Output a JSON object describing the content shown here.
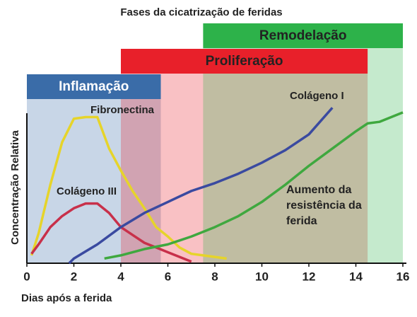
{
  "chart_data": {
    "type": "line",
    "title": "Fases da cicatrização de feridas",
    "xlabel": "Dias após a ferida",
    "ylabel": "Concentração Relativa",
    "xlim": [
      0,
      16
    ],
    "xticks": [
      0,
      2,
      4,
      6,
      8,
      10,
      12,
      14,
      16
    ],
    "ylim": [
      0,
      100
    ],
    "phases": [
      {
        "name": "Inflamação",
        "start": 0,
        "end": 5.7,
        "color": "#3a6ca8"
      },
      {
        "name": "Proliferação",
        "start": 4,
        "end": 14.5,
        "color": "#e8202a"
      },
      {
        "name": "Remodelação",
        "start": 7.5,
        "end": 16,
        "color": "#2db24a"
      }
    ],
    "series": [
      {
        "name": "Fibronectina",
        "color": "#e6d42a",
        "x": [
          0.2,
          0.5,
          1,
          1.5,
          2,
          2.5,
          3,
          3.5,
          4,
          4.5,
          5,
          5.5,
          6,
          6.5,
          7,
          7.5,
          8,
          8.5
        ],
        "values": [
          5,
          19,
          50,
          77,
          92,
          93,
          93,
          73,
          59,
          46,
          35,
          23,
          17,
          10,
          6,
          5,
          4,
          3
        ]
      },
      {
        "name": "Colágeno III",
        "color": "#c8304a",
        "x": [
          0.2,
          0.5,
          1,
          1.5,
          2,
          2.5,
          3,
          3.5,
          4,
          4.5,
          5,
          5.5,
          6,
          6.5,
          7
        ],
        "values": [
          6,
          12,
          23,
          30,
          35,
          38,
          38,
          32,
          23,
          18,
          13,
          10,
          7,
          4,
          1
        ]
      },
      {
        "name": "Colágeno I",
        "color": "#3a4aa0",
        "x": [
          1.8,
          2,
          3,
          4,
          5,
          6,
          7,
          8,
          9,
          10,
          11,
          12,
          13
        ],
        "values": [
          0,
          3,
          12,
          23,
          32,
          39,
          46,
          51,
          57,
          64,
          72,
          82,
          99
        ]
      },
      {
        "name": "Aumento da resistência da ferida",
        "color": "#3fa83f",
        "x": [
          3.3,
          4,
          5,
          6,
          7,
          8,
          9,
          10,
          11,
          12,
          13,
          14,
          14.5,
          15,
          16
        ],
        "values": [
          3,
          5,
          9,
          12,
          17,
          23,
          30,
          39,
          50,
          62,
          73,
          84,
          89,
          90,
          96
        ]
      }
    ]
  }
}
